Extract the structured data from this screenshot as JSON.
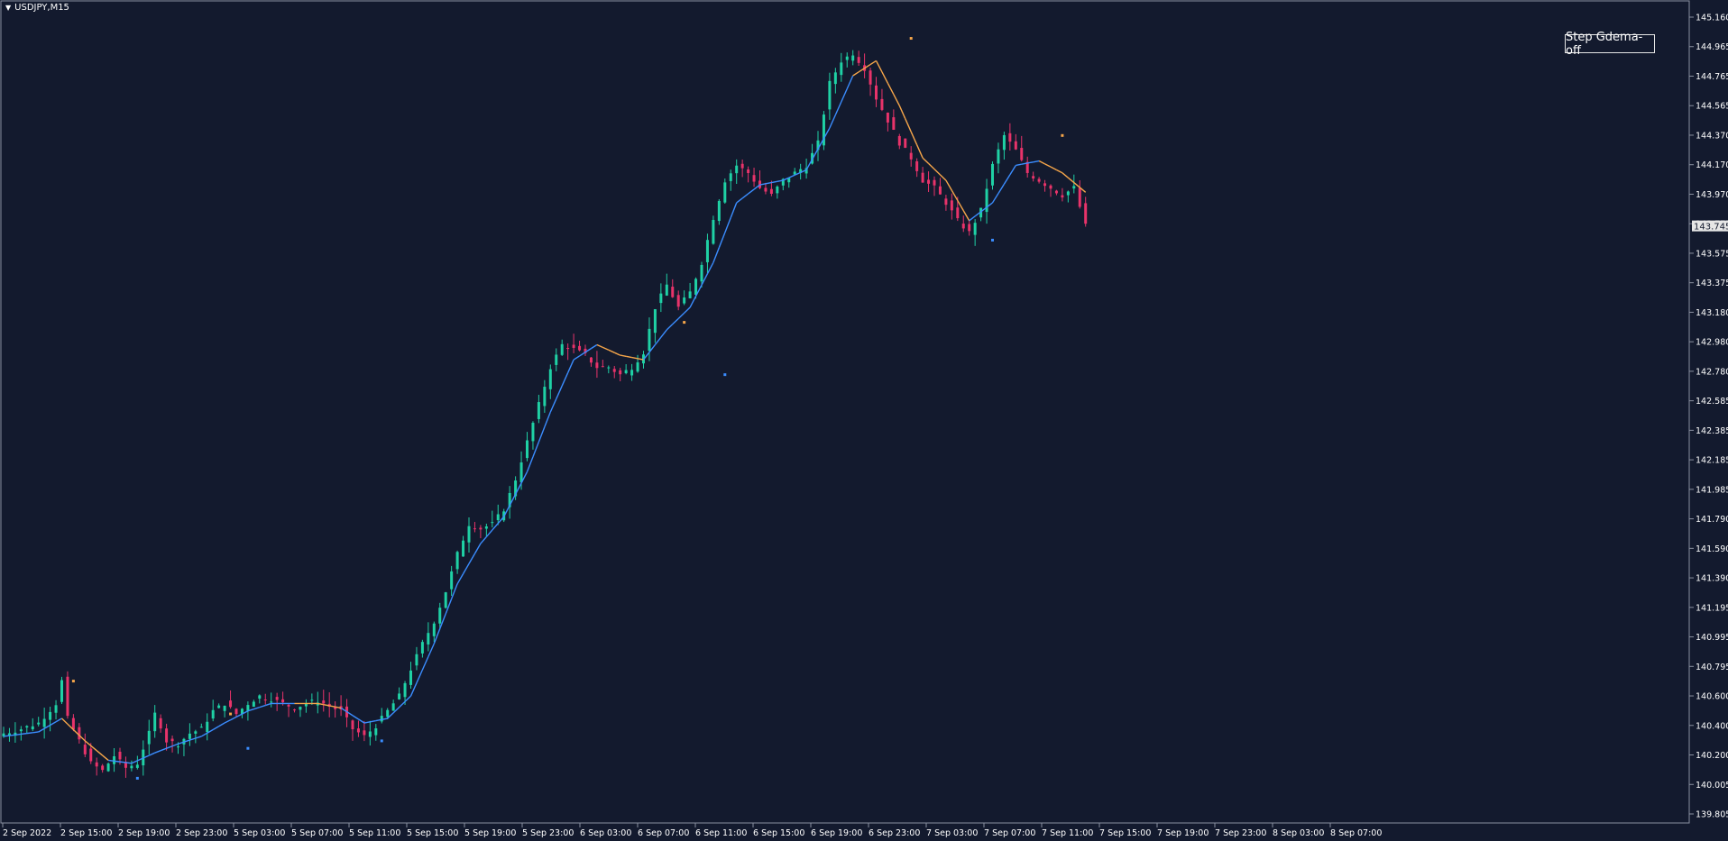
{
  "window": {
    "symbol": "USDJPY,M15"
  },
  "toolbar": {
    "step_button_label": "Step Gdema-off"
  },
  "colors": {
    "background": "#131a2e",
    "bull": "#1fd1a5",
    "bear": "#e8336a",
    "ma_up": "#3b8dff",
    "ma_down": "#f6a64a",
    "axis": "#c8ccd6",
    "text": "#ffffff"
  },
  "chart_data": {
    "type": "candlestick",
    "symbol": "USDJPY",
    "timeframe": "M15",
    "current_price_label": "143.745",
    "ylim": [
      139.805,
      145.16
    ],
    "y_tick_labels": [
      "145.160",
      "144.965",
      "144.765",
      "144.565",
      "144.370",
      "144.170",
      "143.970",
      "143.775",
      "143.575",
      "143.375",
      "143.180",
      "142.980",
      "142.780",
      "142.585",
      "142.385",
      "142.185",
      "141.985",
      "141.790",
      "141.590",
      "141.390",
      "141.195",
      "140.995",
      "140.795",
      "140.600",
      "140.400",
      "140.200",
      "140.005",
      "139.805"
    ],
    "x_tick_labels": [
      "2 Sep 2022",
      "2 Sep 15:00",
      "2 Sep 19:00",
      "2 Sep 23:00",
      "5 Sep 03:00",
      "5 Sep 07:00",
      "5 Sep 11:00",
      "5 Sep 15:00",
      "5 Sep 19:00",
      "5 Sep 23:00",
      "6 Sep 03:00",
      "6 Sep 07:00",
      "6 Sep 11:00",
      "6 Sep 15:00",
      "6 Sep 19:00",
      "6 Sep 23:00",
      "7 Sep 03:00",
      "7 Sep 07:00",
      "7 Sep 11:00",
      "7 Sep 15:00",
      "7 Sep 19:00",
      "7 Sep 23:00",
      "8 Sep 03:00",
      "8 Sep 07:00"
    ],
    "price_path": [
      [
        0,
        140.35
      ],
      [
        3,
        140.38
      ],
      [
        6,
        140.42
      ],
      [
        9,
        140.55
      ],
      [
        10,
        140.7
      ],
      [
        11,
        140.45
      ],
      [
        13,
        140.3
      ],
      [
        15,
        140.15
      ],
      [
        17,
        140.1
      ],
      [
        19,
        140.2
      ],
      [
        21,
        140.12
      ],
      [
        23,
        140.15
      ],
      [
        24,
        140.25
      ],
      [
        25,
        140.35
      ],
      [
        26,
        140.48
      ],
      [
        27,
        140.4
      ],
      [
        28,
        140.3
      ],
      [
        30,
        140.28
      ],
      [
        32,
        140.35
      ],
      [
        34,
        140.38
      ],
      [
        36,
        140.5
      ],
      [
        38,
        140.55
      ],
      [
        40,
        140.48
      ],
      [
        42,
        140.55
      ],
      [
        44,
        140.6
      ],
      [
        46,
        140.58
      ],
      [
        48,
        140.55
      ],
      [
        50,
        140.52
      ],
      [
        52,
        140.55
      ],
      [
        54,
        140.57
      ],
      [
        56,
        140.53
      ],
      [
        58,
        140.5
      ],
      [
        60,
        140.38
      ],
      [
        62,
        140.33
      ],
      [
        64,
        140.4
      ],
      [
        66,
        140.5
      ],
      [
        68,
        140.6
      ],
      [
        70,
        140.78
      ],
      [
        72,
        140.95
      ],
      [
        74,
        141.1
      ],
      [
        76,
        141.3
      ],
      [
        78,
        141.55
      ],
      [
        80,
        141.75
      ],
      [
        82,
        141.72
      ],
      [
        84,
        141.75
      ],
      [
        86,
        141.85
      ],
      [
        88,
        142.05
      ],
      [
        90,
        142.3
      ],
      [
        92,
        142.55
      ],
      [
        94,
        142.8
      ],
      [
        96,
        142.95
      ],
      [
        98,
        142.92
      ],
      [
        100,
        142.88
      ],
      [
        102,
        142.8
      ],
      [
        104,
        142.8
      ],
      [
        106,
        142.75
      ],
      [
        108,
        142.8
      ],
      [
        110,
        142.9
      ],
      [
        112,
        143.2
      ],
      [
        114,
        143.35
      ],
      [
        116,
        143.2
      ],
      [
        118,
        143.3
      ],
      [
        120,
        143.5
      ],
      [
        122,
        143.8
      ],
      [
        124,
        144.05
      ],
      [
        126,
        144.15
      ],
      [
        128,
        144.1
      ],
      [
        130,
        144.0
      ],
      [
        132,
        143.95
      ],
      [
        134,
        144.05
      ],
      [
        136,
        144.1
      ],
      [
        138,
        144.15
      ],
      [
        140,
        144.3
      ],
      [
        142,
        144.7
      ],
      [
        144,
        144.85
      ],
      [
        146,
        144.9
      ],
      [
        148,
        144.8
      ],
      [
        150,
        144.6
      ],
      [
        152,
        144.45
      ],
      [
        154,
        144.3
      ],
      [
        156,
        144.2
      ],
      [
        158,
        144.05
      ],
      [
        160,
        144.0
      ],
      [
        162,
        143.9
      ],
      [
        164,
        143.78
      ],
      [
        166,
        143.7
      ],
      [
        168,
        143.85
      ],
      [
        170,
        144.15
      ],
      [
        172,
        144.35
      ],
      [
        174,
        144.25
      ],
      [
        176,
        144.1
      ],
      [
        178,
        144.05
      ],
      [
        180,
        144.0
      ],
      [
        182,
        143.95
      ],
      [
        184,
        144.0
      ],
      [
        186,
        143.745
      ]
    ],
    "ma_path": [
      [
        0,
        140.33
      ],
      [
        6,
        140.36
      ],
      [
        10,
        140.45
      ],
      [
        14,
        140.3
      ],
      [
        18,
        140.17
      ],
      [
        22,
        140.15
      ],
      [
        26,
        140.22
      ],
      [
        30,
        140.28
      ],
      [
        34,
        140.33
      ],
      [
        38,
        140.42
      ],
      [
        42,
        140.5
      ],
      [
        46,
        140.55
      ],
      [
        50,
        140.55
      ],
      [
        54,
        140.55
      ],
      [
        58,
        140.52
      ],
      [
        62,
        140.42
      ],
      [
        66,
        140.45
      ],
      [
        70,
        140.6
      ],
      [
        74,
        140.95
      ],
      [
        78,
        141.35
      ],
      [
        82,
        141.62
      ],
      [
        86,
        141.8
      ],
      [
        90,
        142.1
      ],
      [
        94,
        142.5
      ],
      [
        98,
        142.85
      ],
      [
        102,
        142.95
      ],
      [
        106,
        142.88
      ],
      [
        110,
        142.85
      ],
      [
        114,
        143.05
      ],
      [
        118,
        143.2
      ],
      [
        122,
        143.5
      ],
      [
        126,
        143.9
      ],
      [
        130,
        144.02
      ],
      [
        134,
        144.05
      ],
      [
        138,
        144.12
      ],
      [
        142,
        144.4
      ],
      [
        146,
        144.75
      ],
      [
        150,
        144.85
      ],
      [
        154,
        144.55
      ],
      [
        158,
        144.2
      ],
      [
        162,
        144.05
      ],
      [
        166,
        143.78
      ],
      [
        170,
        143.9
      ],
      [
        174,
        144.15
      ],
      [
        178,
        144.18
      ],
      [
        182,
        144.1
      ],
      [
        186,
        143.97
      ]
    ],
    "ma_down_segments": [
      [
        10,
        18
      ],
      [
        50,
        58
      ],
      [
        102,
        110
      ],
      [
        146,
        166
      ],
      [
        178,
        186
      ]
    ],
    "markers": [
      {
        "bar": 12,
        "price": 140.7,
        "color": "ma_down"
      },
      {
        "bar": 23,
        "price": 140.05,
        "color": "ma_up"
      },
      {
        "bar": 39,
        "price": 140.48,
        "color": "ma_down"
      },
      {
        "bar": 42,
        "price": 140.25,
        "color": "ma_up"
      },
      {
        "bar": 65,
        "price": 140.3,
        "color": "ma_up"
      },
      {
        "bar": 117,
        "price": 143.1,
        "color": "ma_down"
      },
      {
        "bar": 124,
        "price": 142.75,
        "color": "ma_up"
      },
      {
        "bar": 156,
        "price": 145.0,
        "color": "ma_down"
      },
      {
        "bar": 170,
        "price": 143.65,
        "color": "ma_up"
      },
      {
        "bar": 182,
        "price": 144.35,
        "color": "ma_down"
      }
    ]
  }
}
